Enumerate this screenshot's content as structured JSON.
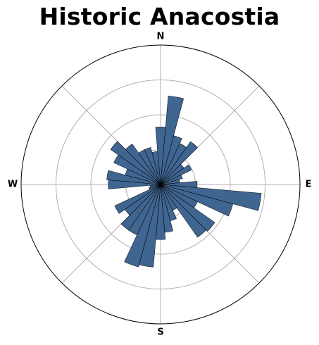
{
  "chart_data": {
    "type": "polar-bar",
    "title": "Historic Anacostia",
    "direction_labels": {
      "north": "N",
      "east": "E",
      "south": "S",
      "west": "W"
    },
    "theta_zero": "north",
    "theta_direction": "clockwise",
    "bin_width_deg": 10,
    "bin_centers_deg": [
      0,
      10,
      20,
      30,
      40,
      50,
      60,
      70,
      80,
      90,
      100,
      110,
      120,
      130,
      140,
      150,
      160,
      170,
      180,
      190,
      200,
      210,
      220,
      230,
      240,
      250,
      260,
      270,
      280,
      290,
      300,
      310,
      320,
      330,
      340,
      350
    ],
    "values": [
      1.65,
      2.55,
      1.45,
      1.3,
      1.5,
      0.82,
      0.98,
      0.65,
      0.55,
      1.05,
      2.9,
      2.15,
      1.17,
      1.9,
      1.85,
      0.82,
      1.08,
      1.38,
      1.58,
      2.38,
      2.45,
      1.6,
      1.6,
      1.25,
      1.45,
      0.35,
      0.3,
      1.5,
      1.55,
      1.05,
      1.48,
      1.75,
      1.42,
      1.1,
      1.1,
      0.95
    ],
    "bar_color": "#3f6591",
    "edge_color": "#000000",
    "radial_ticks": [
      1,
      2,
      3
    ],
    "rmax": 4,
    "grid": true,
    "angular_gridlines_deg": [
      0,
      45,
      90,
      135,
      180,
      225,
      270,
      315
    ],
    "show_radial_tick_labels": false,
    "legend": "none"
  }
}
